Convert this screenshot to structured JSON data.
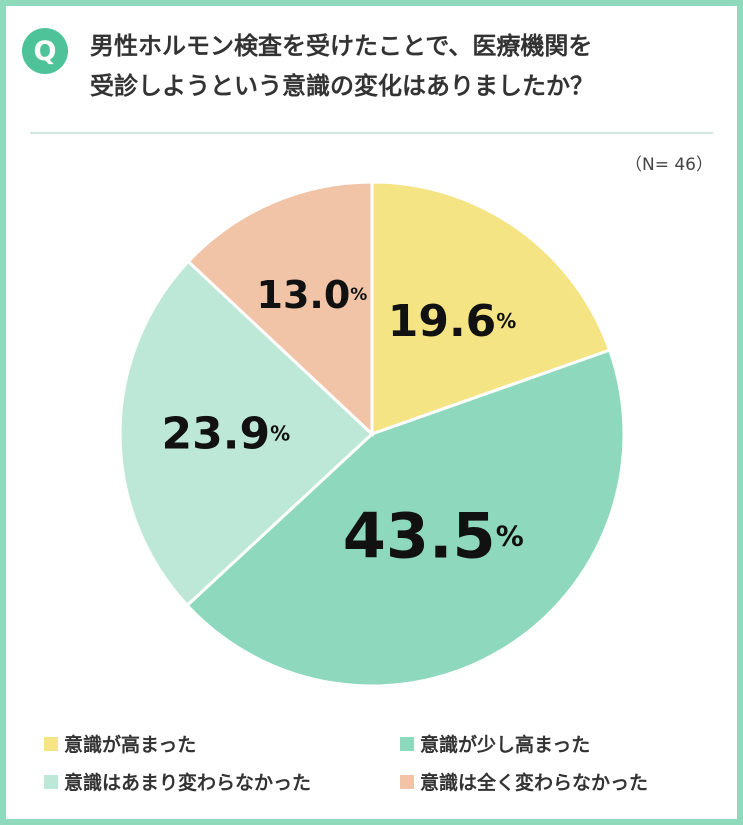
{
  "badge": "Q",
  "question_lines": [
    "男性ホルモン検査を受けたことで、医療機関を",
    "受診しようという意識の変化はありましたか？"
  ],
  "note": "（N= 46）",
  "percent_suffix": "%",
  "chart_data": {
    "type": "pie",
    "title": "男性ホルモン検査を受けたことで、医療機関を受診しようという意識の変化はありましたか？",
    "n": 46,
    "slices": [
      {
        "name": "意識が高まった",
        "value": 19.6,
        "label": "19.6",
        "color": "#f5e484"
      },
      {
        "name": "意識が少し高まった",
        "value": 43.5,
        "label": "43.5",
        "color": "#8ed9bd"
      },
      {
        "name": "意識はあまり変わらなかった",
        "value": 23.9,
        "label": "23.9",
        "color": "#bde8d8"
      },
      {
        "name": "意識は全く変わらなかった",
        "value": 13.0,
        "label": "13.0",
        "color": "#f1c4a7"
      }
    ],
    "start": "12 o'clock",
    "direction": "clockwise",
    "legend_placement": "bottom"
  }
}
